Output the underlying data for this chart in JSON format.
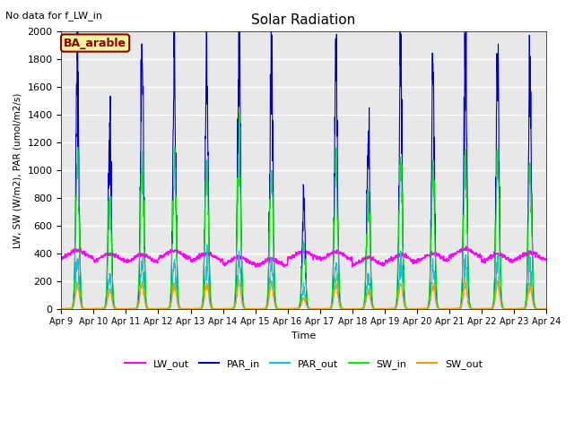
{
  "title": "Solar Radiation",
  "note": "No data for f_LW_in",
  "station_label": "BA_arable",
  "ylabel": "LW, SW (W/m2), PAR (umol/m2/s)",
  "xlabel": "Time",
  "ylim": [
    0,
    2000
  ],
  "start_day": 9,
  "n_days": 15,
  "colors": {
    "LW_out": "#ff00ff",
    "PAR_in": "#0000cd",
    "PAR_out": "#00ccdd",
    "SW_in": "#00ee00",
    "SW_out": "#ff9900"
  },
  "background_color": "#e8e8e8",
  "grid_color": "white",
  "yticks": [
    0,
    200,
    400,
    600,
    800,
    1000,
    1200,
    1400,
    1600,
    1800,
    2000
  ],
  "par_in_peaks": [
    1800,
    1350,
    1820,
    1810,
    1800,
    1950,
    1800,
    790,
    1810,
    1350,
    1850,
    1710,
    1850,
    1840,
    1740
  ],
  "lw_out_base": 370,
  "figsize": [
    6.4,
    4.8
  ],
  "dpi": 100
}
